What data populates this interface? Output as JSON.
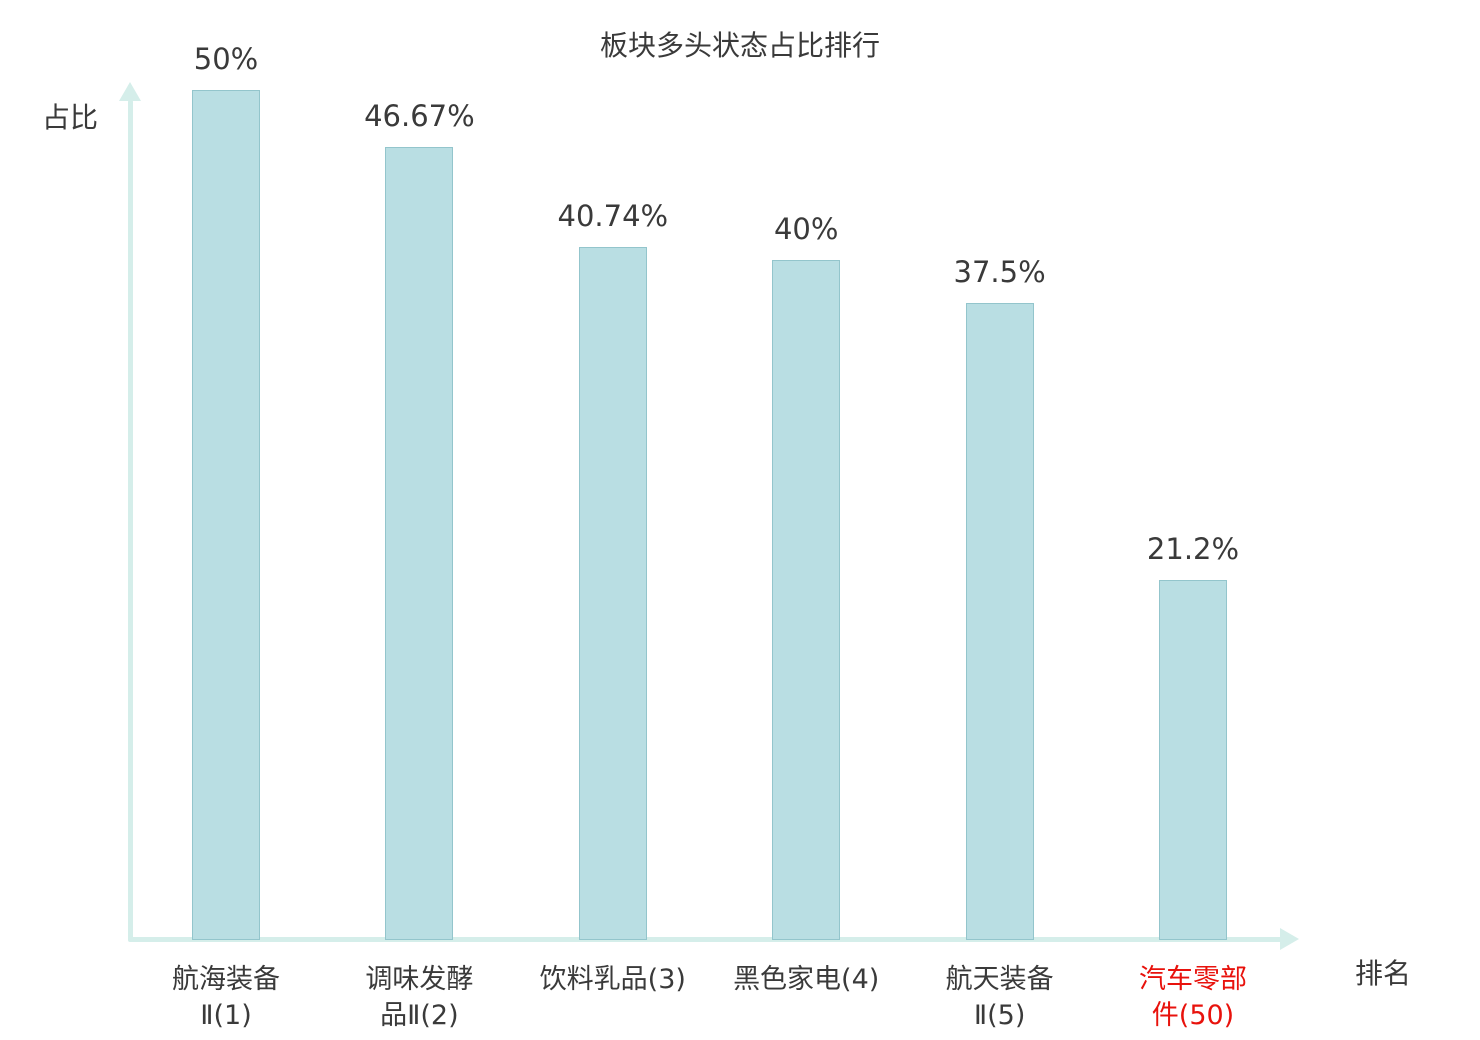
{
  "colors": {
    "bar_fill": "#b9dee3",
    "bar_border": "#93c5cc",
    "axis": "#d5eeea",
    "text": "#3a3a3a",
    "highlight": "#e8120c"
  },
  "chart_data": {
    "type": "bar",
    "title": "板块多头状态占比排行",
    "xlabel": "排名",
    "ylabel": "占比",
    "categories": [
      "航海装备Ⅱ(1)",
      "调味发酵品Ⅱ(2)",
      "饮料乳品(3)",
      "黑色家电(4)",
      "航天装备Ⅱ(5)",
      "汽车零部件(50)"
    ],
    "category_lines": [
      [
        "航海装备",
        "Ⅱ(1)"
      ],
      [
        "调味发酵",
        "品Ⅱ(2)"
      ],
      [
        "饮料乳品(3)"
      ],
      [
        "黑色家电(4)"
      ],
      [
        "航天装备",
        "Ⅱ(5)"
      ],
      [
        "汽车零部",
        "件(50)"
      ]
    ],
    "values": [
      50,
      46.67,
      40.74,
      40,
      37.5,
      21.2
    ],
    "value_labels": [
      "50%",
      "46.67%",
      "40.74%",
      "40%",
      "37.5%",
      "21.2%"
    ],
    "highlight_index": 5,
    "ylim": [
      0,
      52
    ],
    "grid": false,
    "legend": false
  }
}
